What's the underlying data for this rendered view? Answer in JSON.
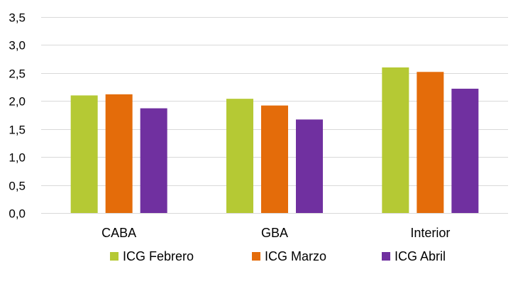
{
  "chart_data": {
    "type": "bar",
    "title": "",
    "xlabel": "",
    "ylabel": "",
    "ylim": [
      0,
      3.5
    ],
    "yticks": [
      "0,0",
      "0,5",
      "1,0",
      "1,5",
      "2,0",
      "2,5",
      "3,0",
      "3,5"
    ],
    "ytick_values": [
      0,
      0.5,
      1.0,
      1.5,
      2.0,
      2.5,
      3.0,
      3.5
    ],
    "grid": true,
    "legend_position": "bottom",
    "categories": [
      "CABA",
      "GBA",
      "Interior"
    ],
    "series": [
      {
        "name": "ICG Febrero",
        "color": "#b5c934",
        "values": [
          2.1,
          2.04,
          2.6
        ]
      },
      {
        "name": "ICG Marzo",
        "color": "#e46c0a",
        "values": [
          2.12,
          1.92,
          2.52
        ]
      },
      {
        "name": "ICG Abril",
        "color": "#7030a0",
        "values": [
          1.87,
          1.67,
          2.22
        ]
      }
    ]
  }
}
